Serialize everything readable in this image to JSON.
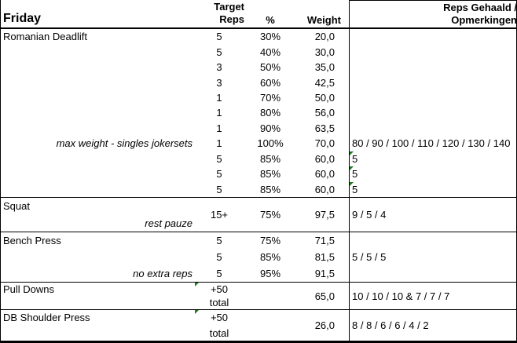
{
  "title": {
    "day": "Friday"
  },
  "columns": {
    "target_line1": "Target",
    "target_line2": "Reps",
    "percent": "%",
    "weight": "Weight",
    "result_line1": "Reps Gehaald /",
    "result_line2": "Opmerkingen"
  },
  "colors": {
    "background": "#ffffff",
    "grid": "#000000",
    "text": "#000000",
    "indicator_green": "#1e7b1e"
  },
  "romanian_deadlift": {
    "exercise": "Romanian Deadlift",
    "note": "max weight - singles jokersets",
    "rows": [
      {
        "reps": "5",
        "pct": "30%",
        "weight": "20,0"
      },
      {
        "reps": "5",
        "pct": "40%",
        "weight": "30,0"
      },
      {
        "reps": "3",
        "pct": "50%",
        "weight": "35,0"
      },
      {
        "reps": "3",
        "pct": "60%",
        "weight": "42,5"
      },
      {
        "reps": "1",
        "pct": "70%",
        "weight": "50,0"
      },
      {
        "reps": "1",
        "pct": "80%",
        "weight": "56,0"
      },
      {
        "reps": "1",
        "pct": "90%",
        "weight": "63,5"
      },
      {
        "reps": "1",
        "pct": "100%",
        "weight": "70,0",
        "result": "80 / 90 / 100 / 110 / 120 / 130 / 140"
      },
      {
        "reps": "5",
        "pct": "85%",
        "weight": "60,0",
        "result": "5"
      },
      {
        "reps": "5",
        "pct": "85%",
        "weight": "60,0",
        "result": "5"
      },
      {
        "reps": "5",
        "pct": "85%",
        "weight": "60,0",
        "result": "5"
      }
    ]
  },
  "squat": {
    "exercise": "Squat",
    "note": "rest pauze",
    "reps": "15+",
    "pct": "75%",
    "weight": "97,5",
    "result": "9 / 5 / 4"
  },
  "bench_press": {
    "exercise": "Bench Press",
    "note": "no extra reps",
    "rows": [
      {
        "reps": "5",
        "pct": "75%",
        "weight": "71,5"
      },
      {
        "reps": "5",
        "pct": "85%",
        "weight": "81,5"
      },
      {
        "reps": "5",
        "pct": "95%",
        "weight": "91,5"
      }
    ],
    "result": "5 / 5 / 5"
  },
  "pull_downs": {
    "exercise": "Pull Downs",
    "reps_target": "+50",
    "reps_label": "total",
    "weight": "65,0",
    "result": "10 / 10 / 10 & 7 / 7 / 7"
  },
  "db_shoulder_press": {
    "exercise": "DB Shoulder Press",
    "reps_target": "+50",
    "reps_label": "total",
    "weight": "26,0",
    "result": "8 / 8 / 6 / 6 / 4 / 2"
  }
}
